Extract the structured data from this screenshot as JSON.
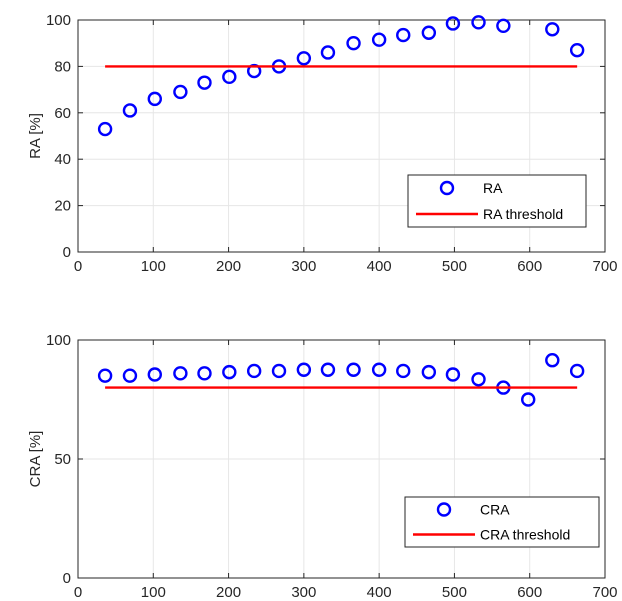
{
  "chart_data": [
    {
      "type": "scatter",
      "ylabel": "RA [%]",
      "xlabel": "",
      "xlim": [
        0,
        700
      ],
      "ylim": [
        0,
        100
      ],
      "xticks": [
        "0",
        "100",
        "200",
        "300",
        "400",
        "500",
        "600",
        "700"
      ],
      "yticks": [
        "0",
        "20",
        "40",
        "60",
        "80",
        "100"
      ],
      "grid": true,
      "legend_position": "bottom-right",
      "series": [
        {
          "name": "RA",
          "style": "markers",
          "color": "#0000ff",
          "x": [
            36,
            69,
            102,
            136,
            168,
            201,
            234,
            267,
            300,
            332,
            366,
            400,
            432,
            466,
            498,
            532,
            565,
            630,
            663
          ],
          "y": [
            53,
            61,
            66,
            69,
            73,
            75.5,
            78,
            80,
            83.5,
            86,
            90,
            91.5,
            93.5,
            94.5,
            98.5,
            99,
            97.5,
            96,
            87
          ]
        },
        {
          "name": "RA threshold",
          "style": "line",
          "color": "#ff0000",
          "x": [
            36,
            663
          ],
          "y": [
            80,
            80
          ]
        }
      ]
    },
    {
      "type": "scatter",
      "ylabel": "CRA [%]",
      "xlabel": "",
      "xlim": [
        0,
        700
      ],
      "ylim": [
        0,
        100
      ],
      "xticks": [
        "0",
        "100",
        "200",
        "300",
        "400",
        "500",
        "600",
        "700"
      ],
      "yticks": [
        "0",
        "50",
        "100"
      ],
      "grid": true,
      "legend_position": "bottom-right",
      "series": [
        {
          "name": "CRA",
          "style": "markers",
          "color": "#0000ff",
          "x": [
            36,
            69,
            102,
            136,
            168,
            201,
            234,
            267,
            300,
            332,
            366,
            400,
            432,
            466,
            498,
            532,
            565,
            598,
            630,
            663
          ],
          "y": [
            85,
            85,
            85.5,
            86,
            86,
            86.5,
            87,
            87,
            87.5,
            87.5,
            87.5,
            87.5,
            87,
            86.5,
            85.5,
            83.5,
            80,
            75,
            91.5,
            87
          ]
        },
        {
          "name": "CRA threshold",
          "style": "line",
          "color": "#ff0000",
          "x": [
            36,
            663
          ],
          "y": [
            80,
            80
          ]
        }
      ]
    }
  ]
}
